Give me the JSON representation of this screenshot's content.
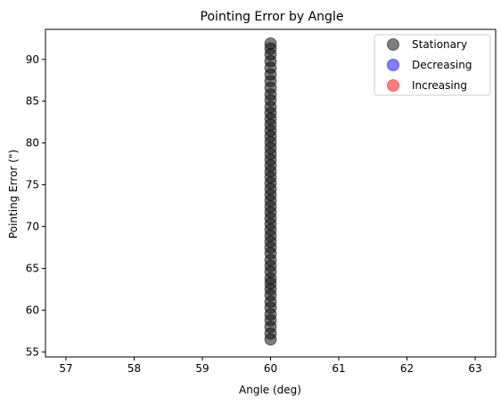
{
  "chart_data": {
    "type": "scatter",
    "title": "Pointing Error by Angle",
    "xlabel": "Angle (deg)",
    "ylabel": "Pointing Error (\")",
    "xlim": [
      56.7,
      63.3
    ],
    "ylim": [
      54.4,
      93.6
    ],
    "xticks": [
      57,
      58,
      59,
      60,
      61,
      62,
      63
    ],
    "yticks": [
      55,
      60,
      65,
      70,
      75,
      80,
      85,
      90
    ],
    "grid": false,
    "legend_position": "top-right",
    "series": [
      {
        "name": "Stationary",
        "color": "#000000",
        "alpha": 0.5,
        "points": [
          [
            60,
            56.5
          ],
          [
            60,
            57.2
          ],
          [
            60,
            58.0
          ],
          [
            60,
            58.8
          ],
          [
            60,
            59.5
          ],
          [
            60,
            60.3
          ],
          [
            60,
            61.0
          ],
          [
            60,
            61.8
          ],
          [
            60,
            62.5
          ],
          [
            60,
            63.2
          ],
          [
            60,
            63.8
          ],
          [
            60,
            64.6
          ],
          [
            60,
            65.3
          ],
          [
            60,
            66.0
          ],
          [
            60,
            66.8
          ],
          [
            60,
            67.5
          ],
          [
            60,
            68.2
          ],
          [
            60,
            68.9
          ],
          [
            60,
            69.6
          ],
          [
            60,
            70.3
          ],
          [
            60,
            71.0
          ],
          [
            60,
            71.7
          ],
          [
            60,
            72.4
          ],
          [
            60,
            73.1
          ],
          [
            60,
            73.8
          ],
          [
            60,
            74.5
          ],
          [
            60,
            75.2
          ],
          [
            60,
            75.9
          ],
          [
            60,
            76.6
          ],
          [
            60,
            77.3
          ],
          [
            60,
            78.0
          ],
          [
            60,
            78.7
          ],
          [
            60,
            79.4
          ],
          [
            60,
            80.1
          ],
          [
            60,
            80.8
          ],
          [
            60,
            81.5
          ],
          [
            60,
            82.2
          ],
          [
            60,
            82.9
          ],
          [
            60,
            83.6
          ],
          [
            60,
            84.3
          ],
          [
            60,
            85.1
          ],
          [
            60,
            85.8
          ],
          [
            60,
            86.6
          ],
          [
            60,
            87.4
          ],
          [
            60,
            88.2
          ],
          [
            60,
            89.0
          ],
          [
            60,
            89.8
          ],
          [
            60,
            90.6
          ],
          [
            60,
            91.3
          ],
          [
            60,
            91.9
          ]
        ]
      },
      {
        "name": "Decreasing",
        "color": "#0000ff",
        "alpha": 0.5,
        "points": []
      },
      {
        "name": "Increasing",
        "color": "#ff0000",
        "alpha": 0.5,
        "points": []
      }
    ]
  }
}
